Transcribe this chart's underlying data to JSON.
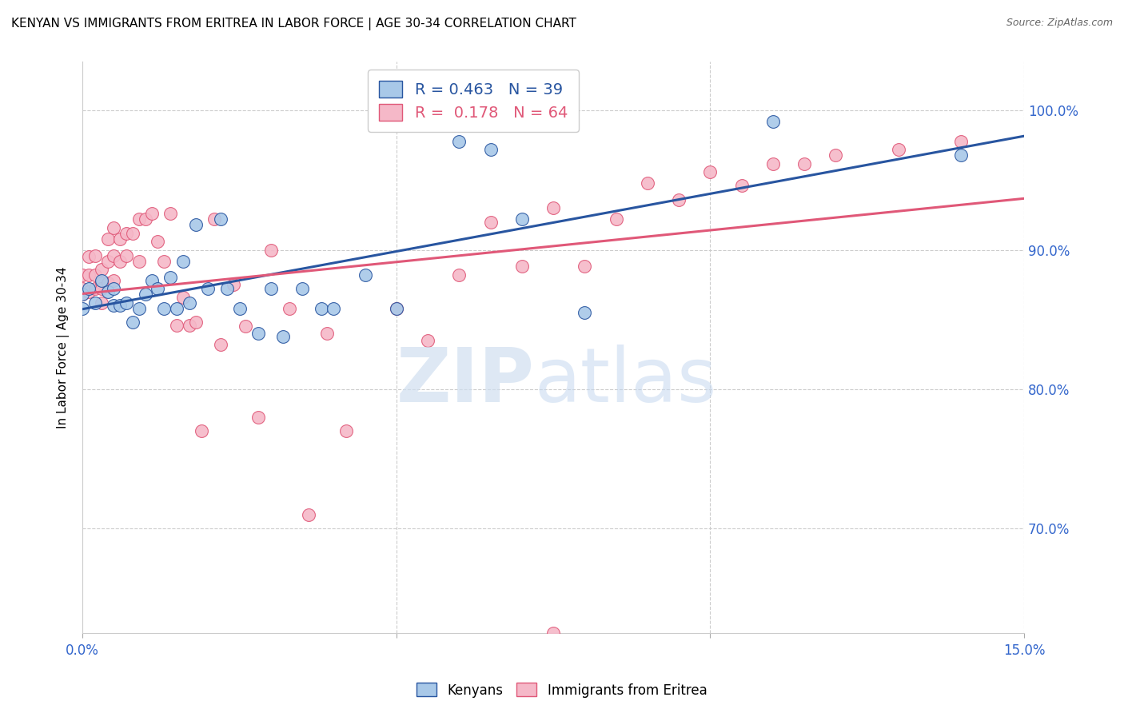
{
  "title": "KENYAN VS IMMIGRANTS FROM ERITREA IN LABOR FORCE | AGE 30-34 CORRELATION CHART",
  "source": "Source: ZipAtlas.com",
  "ylabel": "In Labor Force | Age 30-34",
  "xlim": [
    0.0,
    0.15
  ],
  "ylim": [
    0.625,
    1.035
  ],
  "blue_color": "#a8c8e8",
  "pink_color": "#f5b8c8",
  "blue_line_color": "#2855a0",
  "pink_line_color": "#e05878",
  "legend_R_blue": "0.463",
  "legend_N_blue": "39",
  "legend_R_pink": "0.178",
  "legend_N_pink": "64",
  "blue_scatter_x": [
    0.0,
    0.0,
    0.001,
    0.002,
    0.003,
    0.004,
    0.005,
    0.005,
    0.006,
    0.007,
    0.008,
    0.009,
    0.01,
    0.011,
    0.012,
    0.013,
    0.014,
    0.015,
    0.016,
    0.017,
    0.018,
    0.02,
    0.022,
    0.023,
    0.025,
    0.028,
    0.03,
    0.032,
    0.035,
    0.038,
    0.04,
    0.045,
    0.05,
    0.06,
    0.065,
    0.07,
    0.08,
    0.11,
    0.14
  ],
  "blue_scatter_y": [
    0.868,
    0.858,
    0.872,
    0.862,
    0.878,
    0.87,
    0.872,
    0.86,
    0.86,
    0.862,
    0.848,
    0.858,
    0.868,
    0.878,
    0.872,
    0.858,
    0.88,
    0.858,
    0.892,
    0.862,
    0.918,
    0.872,
    0.922,
    0.872,
    0.858,
    0.84,
    0.872,
    0.838,
    0.872,
    0.858,
    0.858,
    0.882,
    0.858,
    0.978,
    0.972,
    0.922,
    0.855,
    0.992,
    0.968
  ],
  "pink_scatter_x": [
    0.0,
    0.0,
    0.0,
    0.001,
    0.001,
    0.001,
    0.002,
    0.002,
    0.002,
    0.003,
    0.003,
    0.003,
    0.003,
    0.004,
    0.004,
    0.004,
    0.005,
    0.005,
    0.005,
    0.006,
    0.006,
    0.007,
    0.007,
    0.008,
    0.009,
    0.009,
    0.01,
    0.011,
    0.012,
    0.013,
    0.014,
    0.015,
    0.016,
    0.017,
    0.018,
    0.019,
    0.021,
    0.022,
    0.024,
    0.026,
    0.028,
    0.03,
    0.033,
    0.036,
    0.039,
    0.042,
    0.05,
    0.055,
    0.06,
    0.065,
    0.07,
    0.075,
    0.08,
    0.085,
    0.09,
    0.095,
    0.1,
    0.105,
    0.11,
    0.115,
    0.12,
    0.13,
    0.14,
    0.075
  ],
  "pink_scatter_y": [
    0.872,
    0.882,
    0.868,
    0.895,
    0.882,
    0.87,
    0.896,
    0.882,
    0.872,
    0.886,
    0.876,
    0.872,
    0.862,
    0.908,
    0.892,
    0.876,
    0.916,
    0.896,
    0.878,
    0.908,
    0.892,
    0.912,
    0.896,
    0.912,
    0.922,
    0.892,
    0.922,
    0.926,
    0.906,
    0.892,
    0.926,
    0.846,
    0.866,
    0.846,
    0.848,
    0.77,
    0.922,
    0.832,
    0.875,
    0.845,
    0.78,
    0.9,
    0.858,
    0.71,
    0.84,
    0.77,
    0.858,
    0.835,
    0.882,
    0.92,
    0.888,
    0.93,
    0.888,
    0.922,
    0.948,
    0.936,
    0.956,
    0.946,
    0.962,
    0.962,
    0.968,
    0.972,
    0.978,
    0.625
  ]
}
